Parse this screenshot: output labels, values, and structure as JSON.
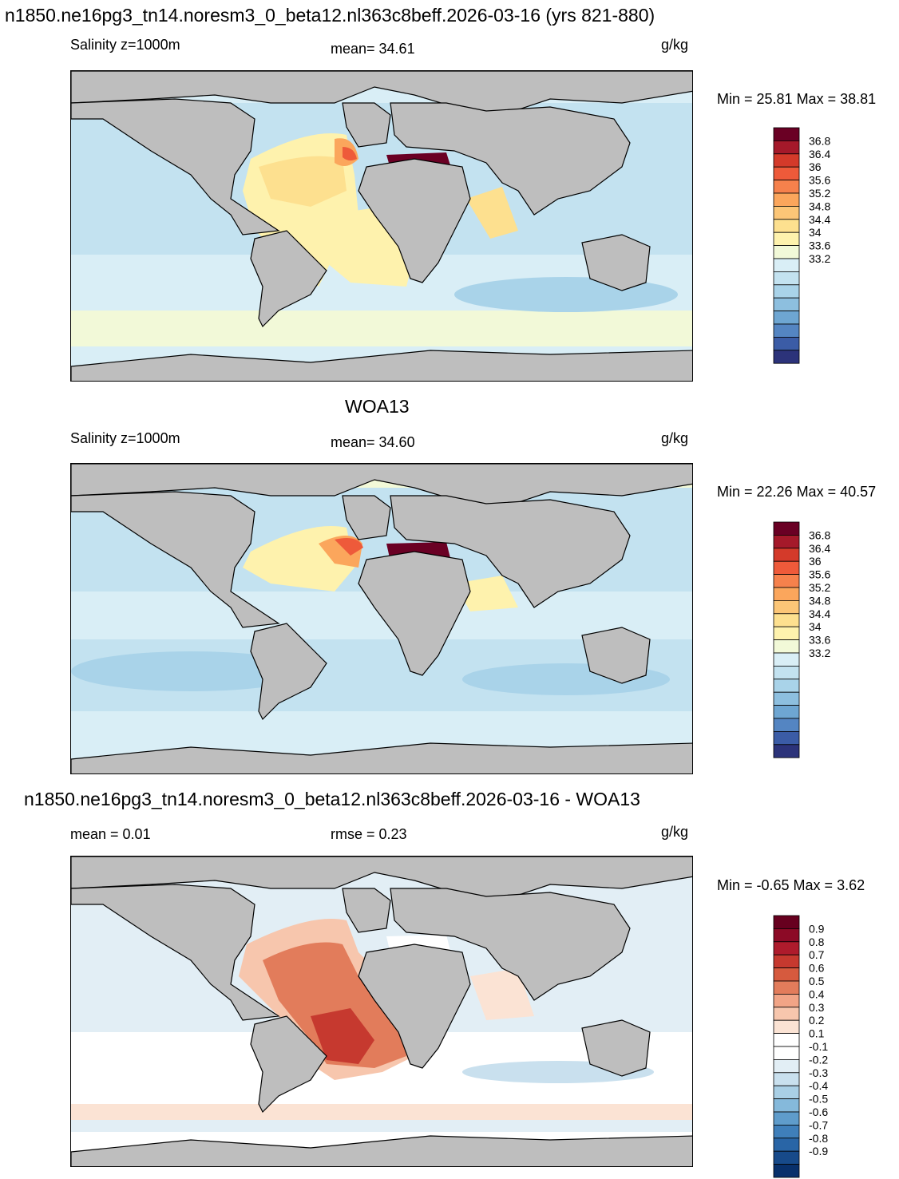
{
  "panels": [
    {
      "id": "model",
      "title": "n1850.ne16pg3_tn14.noresm3_0_beta12.nl363c8beff.2026-03-16 (yrs 821-880)",
      "left_label": "Salinity z=1000m",
      "center_label": "mean=  34.61",
      "units": "g/kg",
      "minmax": "Min =  25.81 Max =  38.81",
      "colorbar": {
        "colors": [
          "#6a0024",
          "#a5192a",
          "#d43a2a",
          "#ee5a3a",
          "#f6814c",
          "#fba65c",
          "#fcc677",
          "#fde08f",
          "#fef2ad",
          "#f2f9d8",
          "#d9eef6",
          "#c3e2f0",
          "#a9d3e9",
          "#8dbfdf",
          "#6ea6d2",
          "#5485c2",
          "#3b5ca6",
          "#2c337a"
        ],
        "labels": [
          "36.8",
          "36.4",
          "36",
          "35.6",
          "35.2",
          "34.8",
          "34.4",
          "34",
          "33.6",
          "33.2"
        ]
      }
    },
    {
      "id": "obs",
      "title": "WOA13",
      "left_label": "Salinity z=1000m",
      "center_label": "mean=  34.60",
      "units": "g/kg",
      "minmax": "Min =  22.26 Max =  40.57",
      "colorbar": {
        "colors": [
          "#6a0024",
          "#a5192a",
          "#d43a2a",
          "#ee5a3a",
          "#f6814c",
          "#fba65c",
          "#fcc677",
          "#fde08f",
          "#fef2ad",
          "#f2f9d8",
          "#d9eef6",
          "#c3e2f0",
          "#a9d3e9",
          "#8dbfdf",
          "#6ea6d2",
          "#5485c2",
          "#3b5ca6",
          "#2c337a"
        ],
        "labels": [
          "36.8",
          "36.4",
          "36",
          "35.6",
          "35.2",
          "34.8",
          "34.4",
          "34",
          "33.6",
          "33.2"
        ]
      }
    },
    {
      "id": "diff",
      "title": "n1850.ne16pg3_tn14.noresm3_0_beta12.nl363c8beff.2026-03-16 - WOA13",
      "left_label": "mean =   0.01",
      "center_label": "rmse =   0.23",
      "units": "g/kg",
      "minmax": "Min =  -0.65 Max =   3.62",
      "colorbar": {
        "colors": [
          "#67001f",
          "#8c0a26",
          "#ae1b2c",
          "#c6392f",
          "#d65a3e",
          "#e27c5b",
          "#f1a486",
          "#f7c6ad",
          "#fbe3d4",
          "#ffffff",
          "#ffffff",
          "#e2eef5",
          "#c9e0ee",
          "#a9cfe5",
          "#85b9db",
          "#5f9ccb",
          "#3f7fba",
          "#2965a6",
          "#174a8a",
          "#08306b"
        ],
        "labels": [
          "0.9",
          "0.8",
          "0.7",
          "0.6",
          "0.5",
          "0.4",
          "0.3",
          "0.2",
          "0.1",
          "-0.1",
          "-0.2",
          "-0.3",
          "-0.4",
          "-0.5",
          "-0.6",
          "-0.7",
          "-0.8",
          "-0.9"
        ]
      }
    }
  ],
  "colors": {
    "land": "#bebebe",
    "coast": "#000000"
  }
}
